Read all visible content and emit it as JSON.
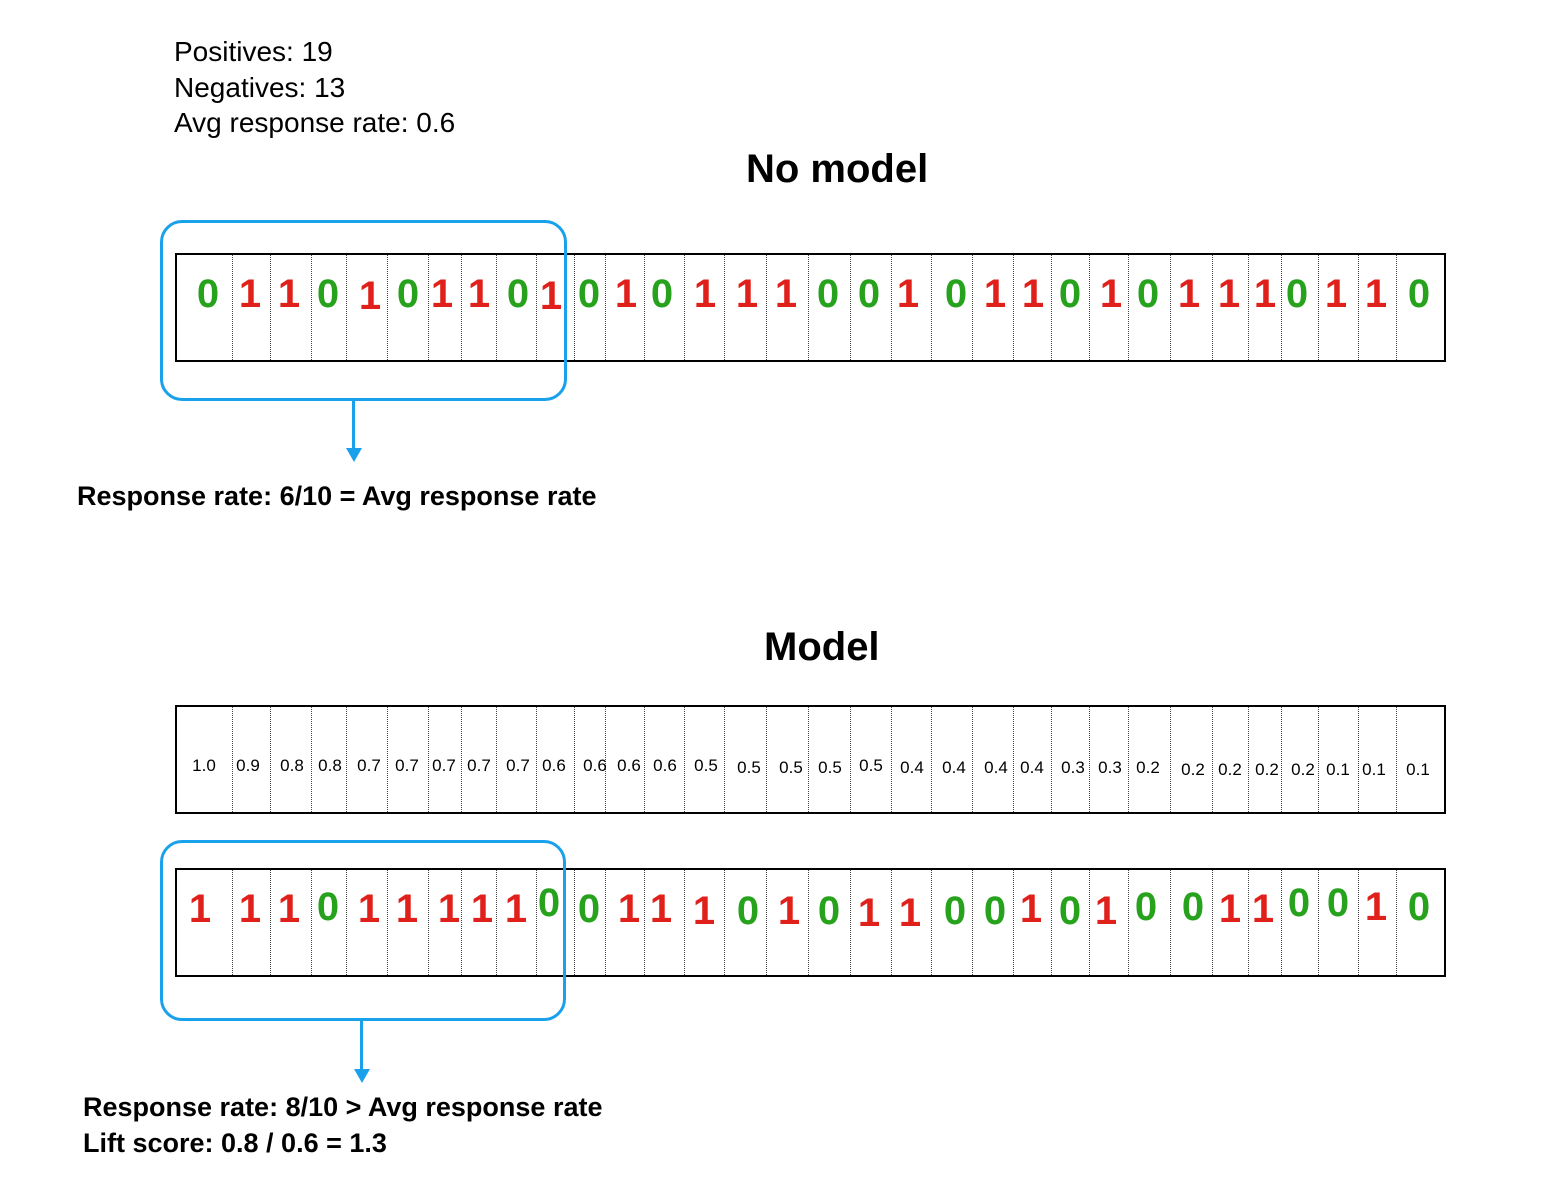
{
  "stats": {
    "positives": "Positives: 19",
    "negatives": "Negatives: 13",
    "avg_rate": "Avg response rate: 0.6"
  },
  "no_model": {
    "title": "No model",
    "labels": [
      "0",
      "1",
      "1",
      "0",
      "1",
      "0",
      "1",
      "1",
      "0",
      "1",
      "0",
      "1",
      "0",
      "1",
      "1",
      "1",
      "0",
      "0",
      "1",
      "0",
      "1",
      "1",
      "0",
      "1",
      "0",
      "1",
      "1",
      "1",
      "0",
      "1",
      "1",
      "0"
    ],
    "note": "Response rate: 6/10 = Avg response rate"
  },
  "model": {
    "title": "Model",
    "scores": [
      "1.0",
      "0.9",
      "0.8",
      "0.8",
      "0.7",
      "0.7",
      "0.7",
      "0.7",
      "0.7",
      "0.6",
      "0.6",
      "0.6",
      "0.6",
      "0.5",
      "0.5",
      "0.5",
      "0.5",
      "0.5",
      "0.4",
      "0.4",
      "0.4",
      "0.4",
      "0.3",
      "0.3",
      "0.2",
      "0.2",
      "0.2",
      "0.2",
      "0.2",
      "0.1",
      "0.1",
      "0.1"
    ],
    "labels": [
      "1",
      "1",
      "1",
      "0",
      "1",
      "1",
      "1",
      "1",
      "1",
      "0",
      "0",
      "1",
      "1",
      "1",
      "0",
      "1",
      "0",
      "1",
      "1",
      "0",
      "0",
      "1",
      "0",
      "1",
      "0",
      "0",
      "1",
      "1",
      "0",
      "0",
      "1",
      "0"
    ],
    "note_line1": "Response rate: 8/10 > Avg response rate",
    "note_line2": "Lift score: 0.8 / 0.6 = 1.3"
  },
  "colors": {
    "positive": "#e0201b",
    "negative": "#27a21c",
    "highlight": "#1aa1ec"
  }
}
